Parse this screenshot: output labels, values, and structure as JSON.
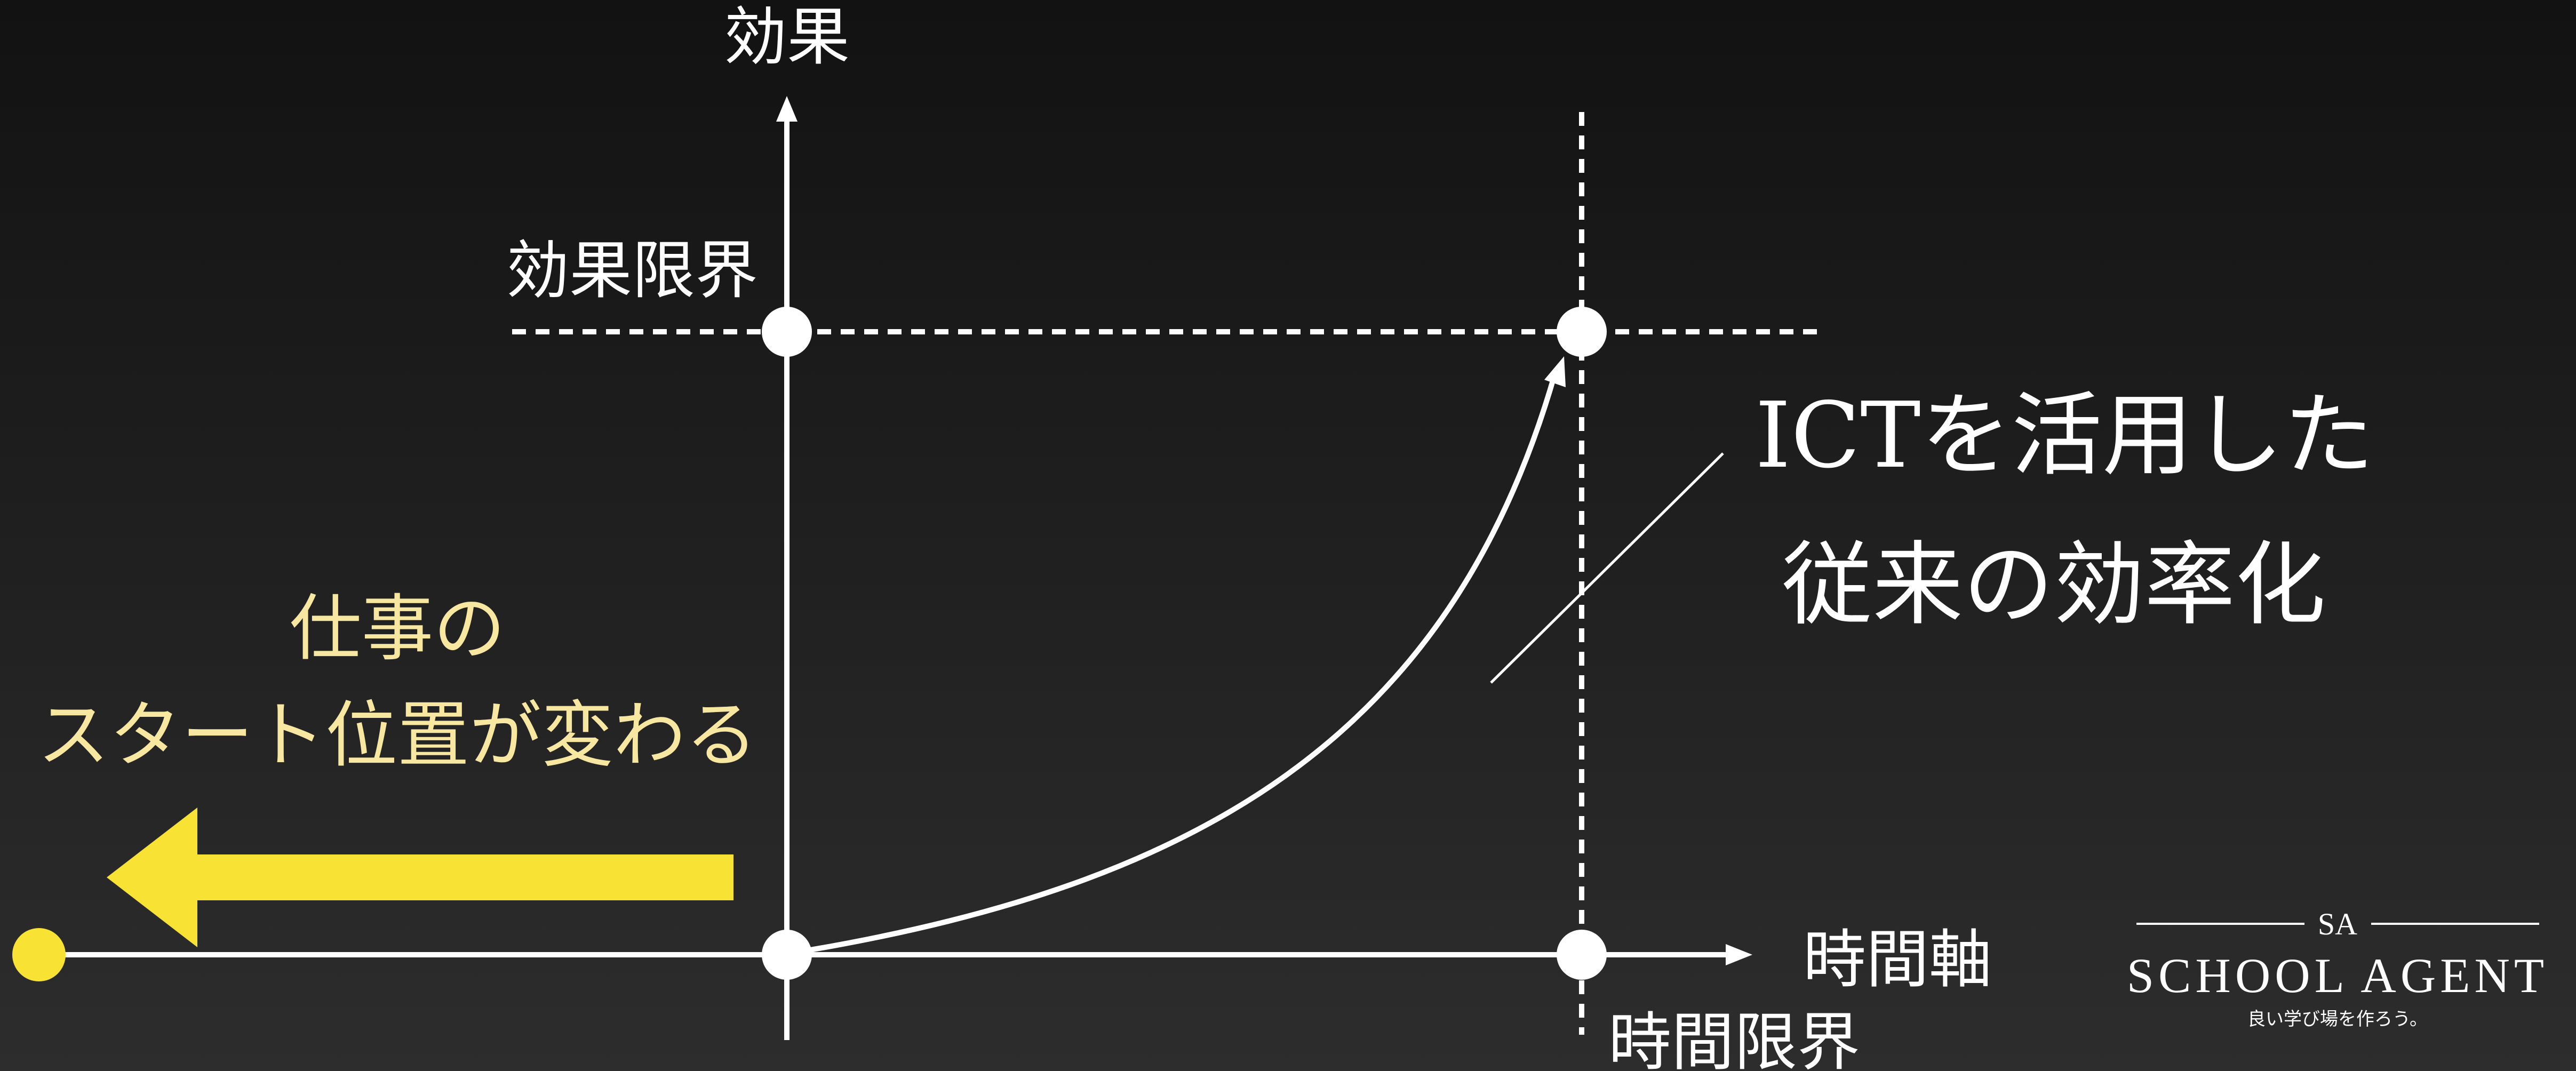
{
  "axes": {
    "y_label": "効果",
    "x_label": "時間軸",
    "effect_limit_label": "効果限界",
    "time_limit_label": "時間限界"
  },
  "annotation": {
    "line1": "ICTを活用した",
    "line2": "従来の効率化"
  },
  "start_shift": {
    "line1": "仕事の",
    "line2": "スタート位置が変わる"
  },
  "logo": {
    "mark": "SA",
    "name": "SCHOOL AGENT",
    "tagline": "良い学び場を作ろう。"
  },
  "colors": {
    "background": "#1a1a1a",
    "line": "#ffffff",
    "accent_yellow": "#f8e233",
    "text_yellow": "#f7e7a0"
  }
}
